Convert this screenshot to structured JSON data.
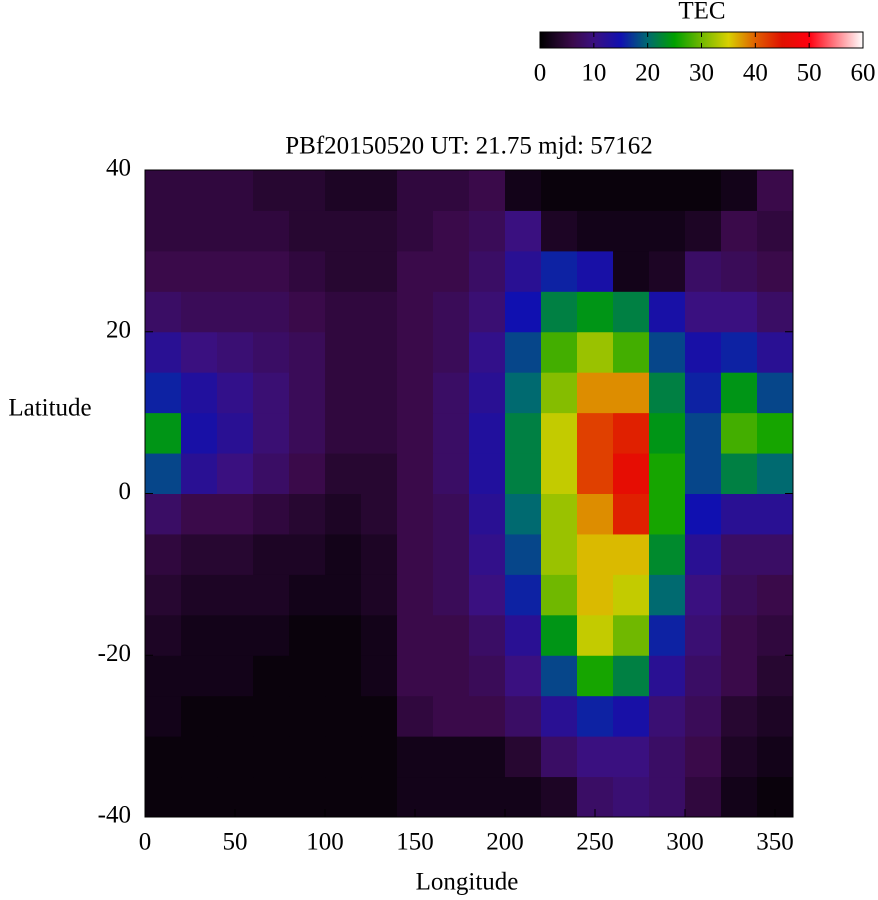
{
  "chart_data": {
    "type": "heatmap",
    "title": "PBf20150520  UT: 21.75  mjd: 57162",
    "x_label": "Longitude",
    "y_label": "Latitude",
    "xbins": [
      0,
      20,
      40,
      60,
      80,
      100,
      120,
      140,
      160,
      180,
      200,
      220,
      240,
      260,
      280,
      300,
      320,
      340,
      360
    ],
    "ybins": [
      -40,
      -35,
      -30,
      -25,
      -20,
      -15,
      -10,
      -5,
      0,
      5,
      10,
      15,
      20,
      25,
      30,
      35,
      40
    ],
    "xlim": [
      0,
      360
    ],
    "ylim": [
      -40,
      40
    ],
    "xticks": [
      0,
      50,
      100,
      150,
      200,
      250,
      300,
      350
    ],
    "yticks": [
      -40,
      -20,
      0,
      20,
      40
    ],
    "values": [
      [
        1,
        1,
        1,
        1,
        1,
        1,
        1,
        2,
        2,
        2,
        2,
        3,
        8,
        9,
        8,
        5,
        2,
        1
      ],
      [
        1,
        1,
        1,
        1,
        1,
        1,
        1,
        2,
        2,
        2,
        4,
        8,
        10,
        10,
        8,
        6,
        3,
        2
      ],
      [
        2,
        1,
        1,
        1,
        1,
        1,
        1,
        5,
        6,
        6,
        8,
        12,
        16,
        14,
        9,
        7,
        4,
        3
      ],
      [
        2,
        2,
        2,
        1,
        1,
        1,
        2,
        6,
        6,
        7,
        10,
        18,
        26,
        22,
        12,
        8,
        6,
        4
      ],
      [
        3,
        2,
        2,
        2,
        1,
        1,
        2,
        6,
        6,
        8,
        12,
        24,
        34,
        30,
        16,
        9,
        6,
        5
      ],
      [
        4,
        3,
        3,
        3,
        2,
        2,
        3,
        6,
        7,
        10,
        16,
        30,
        36,
        34,
        20,
        10,
        7,
        6
      ],
      [
        5,
        4,
        4,
        3,
        3,
        2,
        3,
        6,
        7,
        11,
        18,
        32,
        36,
        36,
        23,
        12,
        8,
        8
      ],
      [
        8,
        6,
        6,
        5,
        4,
        3,
        4,
        6,
        7,
        12,
        20,
        32,
        38,
        44,
        26,
        15,
        12,
        12
      ],
      [
        18,
        12,
        10,
        8,
        6,
        4,
        4,
        6,
        8,
        13,
        22,
        34,
        42,
        46,
        26,
        18,
        22,
        20
      ],
      [
        24,
        14,
        12,
        9,
        7,
        5,
        5,
        6,
        8,
        13,
        22,
        34,
        42,
        44,
        24,
        18,
        28,
        26
      ],
      [
        16,
        13,
        11,
        9,
        7,
        5,
        5,
        6,
        8,
        12,
        20,
        31,
        38,
        38,
        22,
        16,
        24,
        18
      ],
      [
        12,
        10,
        9,
        8,
        7,
        5,
        5,
        6,
        7,
        11,
        18,
        28,
        32,
        28,
        18,
        14,
        16,
        12
      ],
      [
        8,
        7,
        7,
        7,
        6,
        5,
        5,
        6,
        7,
        9,
        15,
        22,
        24,
        22,
        14,
        10,
        10,
        8
      ],
      [
        6,
        6,
        6,
        6,
        5,
        4,
        4,
        6,
        6,
        8,
        12,
        16,
        14,
        2,
        3,
        8,
        7,
        6
      ],
      [
        5,
        5,
        5,
        5,
        4,
        4,
        4,
        5,
        6,
        7,
        10,
        3,
        2,
        2,
        2,
        3,
        6,
        5
      ],
      [
        5,
        5,
        5,
        4,
        4,
        3,
        3,
        5,
        5,
        6,
        2,
        1,
        1,
        1,
        1,
        1,
        2,
        6
      ]
    ],
    "colorbar": {
      "label": "TEC",
      "lim": [
        0,
        60
      ],
      "ticks": [
        0,
        10,
        20,
        30,
        40,
        50,
        60
      ],
      "colorscale": [
        [
          0,
          "#000000"
        ],
        [
          6,
          "#3a0a4a"
        ],
        [
          10,
          "#3a1080"
        ],
        [
          15,
          "#1010b0"
        ],
        [
          20,
          "#006a70"
        ],
        [
          25,
          "#00a000"
        ],
        [
          30,
          "#70b800"
        ],
        [
          35,
          "#d8d000"
        ],
        [
          40,
          "#e06000"
        ],
        [
          45,
          "#e01000"
        ],
        [
          50,
          "#ff0010"
        ],
        [
          60,
          "#ffffff"
        ]
      ]
    }
  }
}
